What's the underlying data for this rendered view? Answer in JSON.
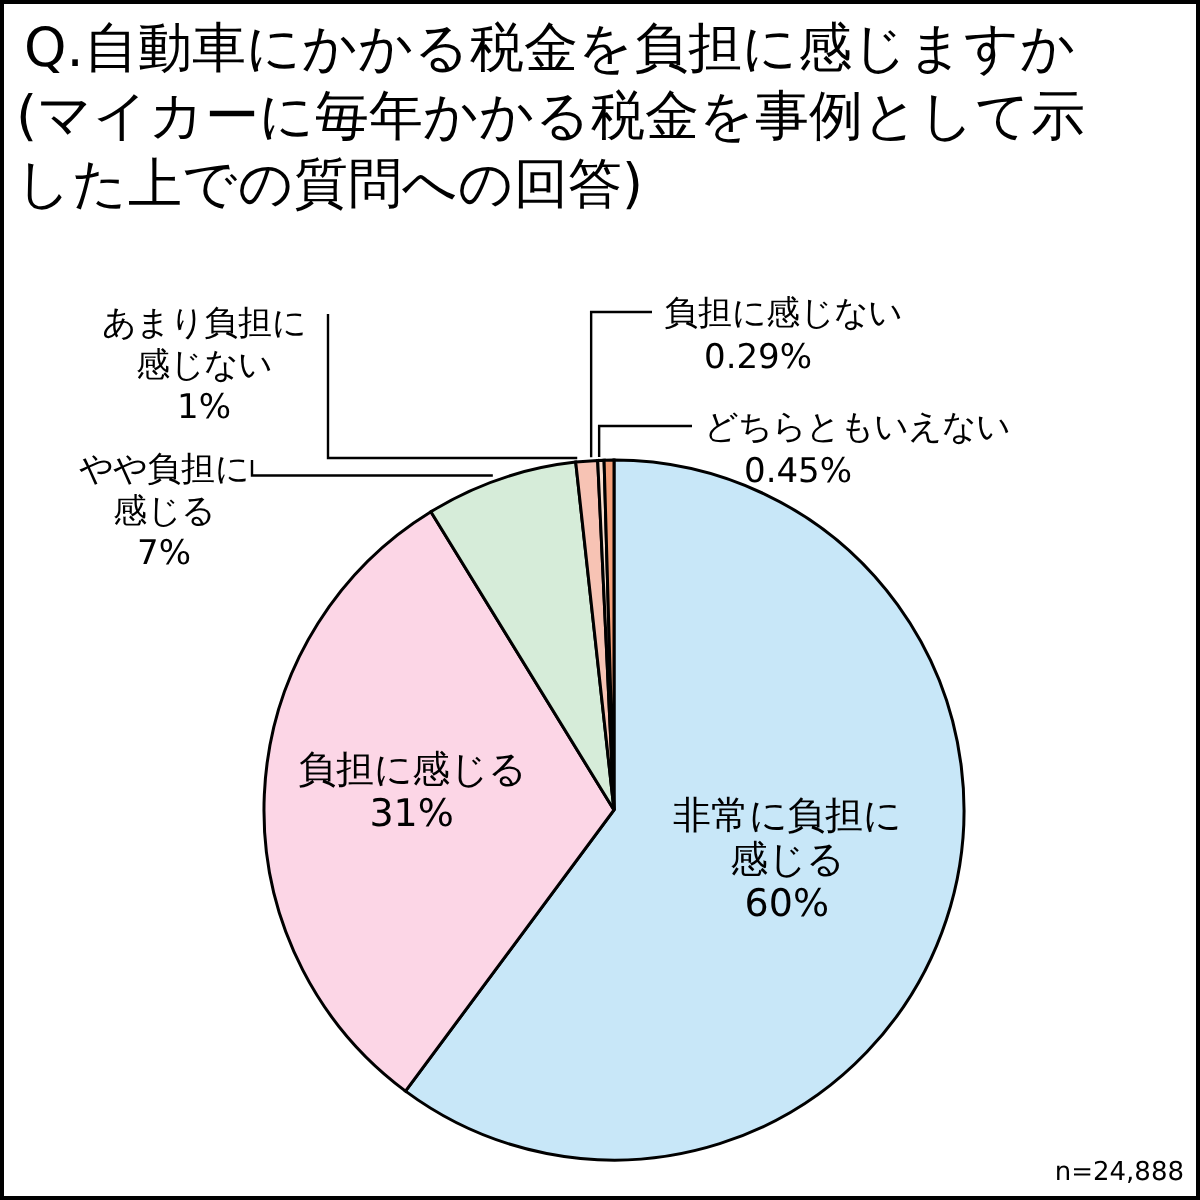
{
  "chart_data": {
    "type": "pie",
    "title": "Q.自動車にかかる税金を負担に感じますか",
    "subtitle": "(マイカーに毎年かかる税金を事例として示した上での質問への回答)",
    "categories": [
      "非常に負担に感じる",
      "負担に感じる",
      "やや負担に感じる",
      "あまり負担に感じない",
      "負担に感じない",
      "どちらともいえない"
    ],
    "values": [
      60,
      31,
      7,
      1,
      0.29,
      0.45
    ],
    "value_labels": [
      "60%",
      "31%",
      "7%",
      "1%",
      "0.29%",
      "0.45%"
    ],
    "colors": [
      "#c8e7f8",
      "#fcd6e6",
      "#d6ecd9",
      "#f7c3b4",
      "#fbe0cf",
      "#f4a07a"
    ],
    "annotations": [
      "n=24,888"
    ]
  }
}
